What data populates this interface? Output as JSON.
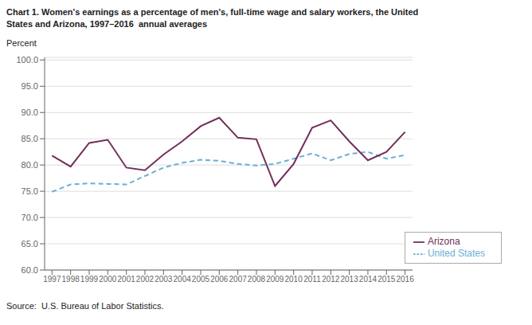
{
  "chart_data": {
    "type": "line",
    "title": "Chart 1. Women's earnings as a percentage of men's, full-time wage and salary workers, the United\nStates and Arizona, 1997–2016  annual averages",
    "y_label": "Percent",
    "source": "Source:  U.S. Bureau of Labor Statistics.",
    "x": [
      1997,
      1998,
      1999,
      2000,
      2001,
      2002,
      2003,
      2004,
      2005,
      2006,
      2007,
      2008,
      2009,
      2010,
      2011,
      2012,
      2013,
      2014,
      2015,
      2016
    ],
    "series": [
      {
        "name": "United States",
        "color": "#6baed6",
        "line_style": "dashed",
        "values": [
          74.9,
          76.3,
          76.5,
          76.4,
          76.3,
          77.9,
          79.5,
          80.4,
          81.0,
          80.8,
          80.2,
          79.9,
          80.2,
          81.2,
          82.2,
          80.9,
          82.1,
          82.5,
          81.2,
          81.9
        ]
      },
      {
        "name": "Arizona",
        "color": "#722F5A",
        "line_style": "solid",
        "values": [
          81.8,
          79.7,
          84.2,
          84.8,
          79.5,
          79.0,
          82.0,
          84.5,
          87.4,
          89.0,
          85.2,
          84.9,
          76.0,
          80.2,
          87.1,
          88.5,
          84.5,
          80.9,
          82.5,
          86.3
        ]
      }
    ],
    "xlim": [
      1996.6,
      2016.4
    ],
    "xticks": [
      1997,
      1998,
      1999,
      2000,
      2001,
      2002,
      2003,
      2004,
      2005,
      2006,
      2007,
      2008,
      2009,
      2010,
      2011,
      2012,
      2013,
      2014,
      2015,
      2016
    ],
    "ylim": [
      60.0,
      100.5
    ],
    "yticks": [
      {
        "value": 60,
        "label": "60.0"
      },
      {
        "value": 65,
        "label": "65.0"
      },
      {
        "value": 70,
        "label": "70.0"
      },
      {
        "value": 75,
        "label": "75.0"
      },
      {
        "value": 80,
        "label": "80.0"
      },
      {
        "value": 85,
        "label": "85.0"
      },
      {
        "value": 90,
        "label": "90.0"
      },
      {
        "value": 95,
        "label": "95.0"
      },
      {
        "value": 100,
        "label": "100.0"
      }
    ],
    "grid": "y",
    "legend": "lower right"
  }
}
